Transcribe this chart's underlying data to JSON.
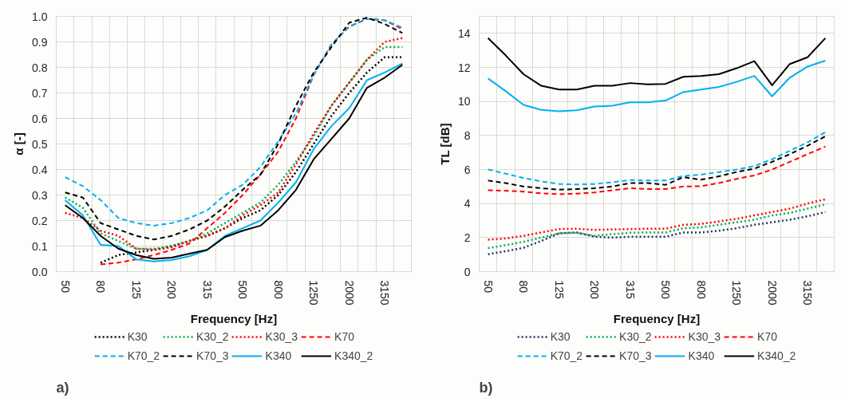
{
  "chart_data": [
    {
      "type": "line",
      "xlabel": "Frequency [Hz]",
      "ylabel": "α [-]",
      "annotations": [
        "a)"
      ],
      "categories": [
        "50",
        null,
        "80",
        null,
        "125",
        null,
        "200",
        null,
        "315",
        null,
        "500",
        null,
        "800",
        null,
        "1250",
        null,
        "2000",
        null,
        "3150",
        null
      ],
      "ylim": [
        0,
        1
      ],
      "yticks": [
        {
          "value": 0,
          "label": "0.0"
        },
        0.1,
        0.2,
        0.3,
        0.4,
        0.5,
        0.6,
        0.7,
        0.8,
        0.9,
        {
          "value": 1,
          "label": "1.0"
        }
      ],
      "grid": true,
      "legend": "bottom",
      "series": [
        {
          "name": "K30",
          "color": "#000000",
          "line_style": "dotted",
          "values": [
            null,
            null,
            0.035,
            0.065,
            0.075,
            0.085,
            0.1,
            0.12,
            0.14,
            0.17,
            0.21,
            0.24,
            0.3,
            0.39,
            0.5,
            0.61,
            0.7,
            0.78,
            0.84,
            0.84
          ]
        },
        {
          "name": "K30_2",
          "color": "#00b050",
          "line_style": "dotted",
          "values": [
            0.29,
            0.25,
            0.15,
            0.12,
            0.09,
            0.09,
            0.1,
            0.12,
            0.15,
            0.19,
            0.23,
            0.27,
            0.34,
            0.43,
            0.53,
            0.65,
            0.74,
            0.83,
            0.88,
            0.88
          ]
        },
        {
          "name": "K30_3",
          "color": "#ff0000",
          "line_style": "dotted",
          "values": [
            0.23,
            0.21,
            0.16,
            0.14,
            0.09,
            0.085,
            0.095,
            0.12,
            0.14,
            0.17,
            0.22,
            0.26,
            0.31,
            0.42,
            0.54,
            0.65,
            0.74,
            0.83,
            0.9,
            0.915
          ]
        },
        {
          "name": "K70",
          "color": "#ff0000",
          "line_style": "dashed",
          "values": [
            null,
            null,
            0.028,
            0.035,
            0.048,
            0.065,
            0.085,
            0.11,
            0.17,
            0.23,
            0.3,
            0.38,
            0.47,
            0.6,
            0.77,
            0.89,
            0.96,
            0.99,
            0.985,
            0.95
          ]
        },
        {
          "name": "K70_2",
          "color": "#00b0f0",
          "line_style": "dashed",
          "values": [
            0.37,
            0.335,
            0.28,
            0.21,
            0.19,
            0.18,
            0.19,
            0.21,
            0.24,
            0.3,
            0.34,
            0.41,
            0.51,
            0.62,
            0.77,
            0.89,
            0.96,
            0.99,
            0.985,
            0.955
          ]
        },
        {
          "name": "K70_3",
          "color": "#000000",
          "line_style": "dashed",
          "values": [
            0.31,
            0.29,
            0.19,
            0.165,
            0.14,
            0.126,
            0.14,
            0.165,
            0.2,
            0.255,
            0.32,
            0.38,
            0.5,
            0.65,
            0.78,
            0.88,
            0.975,
            0.995,
            0.97,
            0.935
          ]
        },
        {
          "name": "K340",
          "color": "#00b0f0",
          "line_style": "solid",
          "values": [
            0.28,
            0.22,
            0.105,
            0.1,
            0.048,
            0.04,
            0.045,
            0.06,
            0.085,
            0.14,
            0.17,
            0.2,
            0.27,
            0.35,
            0.48,
            0.57,
            0.64,
            0.75,
            0.78,
            0.815
          ]
        },
        {
          "name": "K340_2",
          "color": "#000000",
          "line_style": "solid",
          "values": [
            0.26,
            0.21,
            0.14,
            0.09,
            0.065,
            0.05,
            0.055,
            0.07,
            0.085,
            0.135,
            0.16,
            0.18,
            0.24,
            0.32,
            0.44,
            0.52,
            0.6,
            0.72,
            0.76,
            0.81
          ]
        }
      ]
    },
    {
      "type": "line",
      "xlabel": "Frequency [Hz]",
      "ylabel": "TL [dB]",
      "annotations": [
        "b)"
      ],
      "categories": [
        "50",
        null,
        "80",
        null,
        "125",
        null,
        "200",
        null,
        "315",
        null,
        "500",
        null,
        "800",
        null,
        "1250",
        null,
        "2000",
        null,
        "3150",
        null
      ],
      "ylim": [
        0,
        15
      ],
      "yticks": [
        0,
        2,
        4,
        6,
        8,
        10,
        12,
        14
      ],
      "grid": true,
      "legend": "bottom",
      "series": [
        {
          "name": "K30",
          "color": "#1f3864",
          "line_style": "dotted",
          "values": [
            1.02,
            1.2,
            1.4,
            1.8,
            2.25,
            2.3,
            2.05,
            2.0,
            2.05,
            2.05,
            2.05,
            2.3,
            2.3,
            2.4,
            2.55,
            2.75,
            2.9,
            3.05,
            3.25,
            3.5
          ]
        },
        {
          "name": "K30_2",
          "color": "#00b050",
          "line_style": "dotted",
          "values": [
            1.38,
            1.55,
            1.75,
            2.0,
            2.25,
            2.28,
            2.1,
            2.2,
            2.28,
            2.3,
            2.3,
            2.55,
            2.6,
            2.75,
            2.9,
            3.05,
            3.3,
            3.45,
            3.7,
            3.95
          ]
        },
        {
          "name": "K30_3",
          "color": "#ff0000",
          "line_style": "dotted",
          "values": [
            1.88,
            1.95,
            2.1,
            2.3,
            2.5,
            2.52,
            2.45,
            2.48,
            2.5,
            2.52,
            2.52,
            2.75,
            2.8,
            2.95,
            3.1,
            3.3,
            3.5,
            3.7,
            4.0,
            4.25
          ]
        },
        {
          "name": "K70",
          "color": "#ff0000",
          "line_style": "dashed",
          "values": [
            4.78,
            4.75,
            4.7,
            4.6,
            4.55,
            4.58,
            4.65,
            4.78,
            4.9,
            4.85,
            4.85,
            5.0,
            5.02,
            5.2,
            5.45,
            5.65,
            6.0,
            6.45,
            6.9,
            7.35
          ]
        },
        {
          "name": "K70_2",
          "color": "#00b0f0",
          "line_style": "dashed",
          "values": [
            6.0,
            5.75,
            5.5,
            5.3,
            5.15,
            5.12,
            5.15,
            5.25,
            5.38,
            5.35,
            5.35,
            5.62,
            5.7,
            5.85,
            6.0,
            6.2,
            6.6,
            7.1,
            7.6,
            8.2
          ]
        },
        {
          "name": "K70_3",
          "color": "#000000",
          "line_style": "dashed",
          "values": [
            5.35,
            5.2,
            5.0,
            4.9,
            4.82,
            4.85,
            4.9,
            5.0,
            5.2,
            5.2,
            5.1,
            5.55,
            5.4,
            5.6,
            5.85,
            6.05,
            6.45,
            6.9,
            7.4,
            7.95
          ]
        },
        {
          "name": "K340",
          "color": "#00b0f0",
          "line_style": "solid",
          "values": [
            11.35,
            10.6,
            9.8,
            9.5,
            9.42,
            9.48,
            9.7,
            9.75,
            9.95,
            9.95,
            10.05,
            10.55,
            10.7,
            10.85,
            11.15,
            11.5,
            10.3,
            11.4,
            12.05,
            12.4
          ]
        },
        {
          "name": "K340_2",
          "color": "#000000",
          "line_style": "solid",
          "values": [
            13.72,
            12.7,
            11.6,
            10.92,
            10.7,
            10.7,
            10.92,
            10.92,
            11.08,
            11.0,
            11.03,
            11.45,
            11.5,
            11.6,
            11.95,
            12.37,
            10.95,
            12.2,
            12.6,
            13.72
          ]
        }
      ]
    }
  ]
}
